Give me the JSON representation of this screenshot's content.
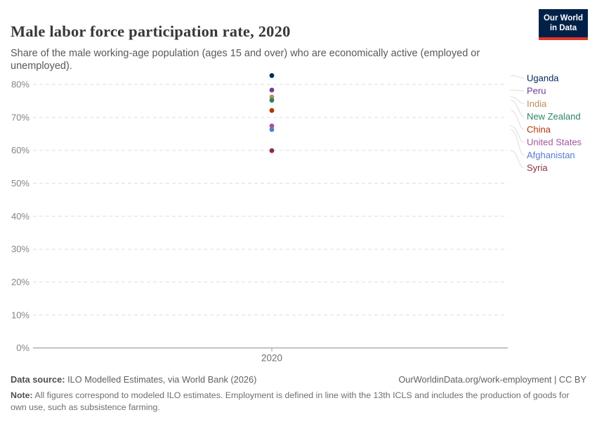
{
  "logo": {
    "line1": "Our World",
    "line2": "in Data",
    "bg_color": "#002147",
    "stripe_color": "#e0362b"
  },
  "chart_data": {
    "type": "scatter",
    "title": "Male labor force participation rate, 2020",
    "subtitle": "Share of the male working-age population (ages 15 and over) who are economically active (employed or unemployed).",
    "x_categories": [
      "2020"
    ],
    "x_tick_label": "2020",
    "xlabel": "",
    "ylabel": "",
    "yticks": [
      0,
      10,
      20,
      30,
      40,
      50,
      60,
      70,
      80
    ],
    "ytick_suffix": "%",
    "ylim": [
      0,
      85
    ],
    "grid": "horizontal-dashed",
    "legend_position": "right-entity-labels",
    "series": [
      {
        "name": "Uganda",
        "value": 82.7,
        "color": "#00295b"
      },
      {
        "name": "Peru",
        "value": 78.3,
        "color": "#6d3e91"
      },
      {
        "name": "India",
        "value": 76.2,
        "color": "#bc8e5a"
      },
      {
        "name": "New Zealand",
        "value": 75.2,
        "color": "#2c8465"
      },
      {
        "name": "China",
        "value": 72.1,
        "color": "#b13507"
      },
      {
        "name": "United States",
        "value": 67.4,
        "color": "#a2559c"
      },
      {
        "name": "Afghanistan",
        "value": 66.3,
        "color": "#577ccb"
      },
      {
        "name": "Syria",
        "value": 59.9,
        "color": "#883039"
      }
    ]
  },
  "footer": {
    "datasource_label": "Data source:",
    "datasource_text": " ILO Modelled Estimates, via World Bank (2026)",
    "link_text": "OurWorldinData.org/work-employment | CC BY",
    "note_label": "Note:",
    "note_text": " All figures correspond to modeled ILO estimates. Employment is defined in line with the 13th ICLS and includes the production of goods for own use, such as subsistence farming."
  }
}
